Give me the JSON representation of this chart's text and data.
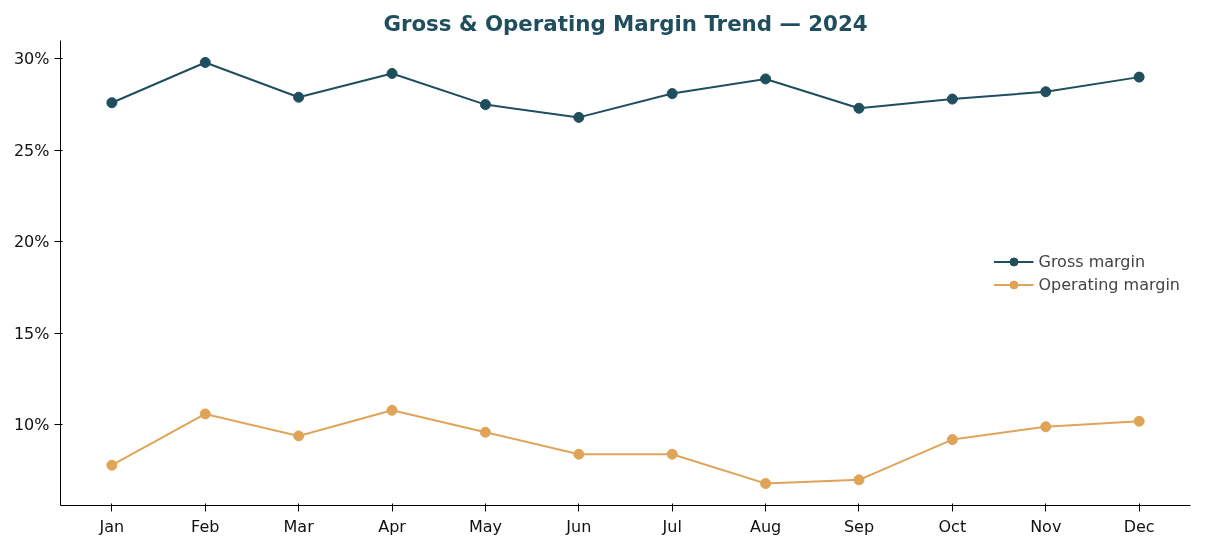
{
  "chart_data": {
    "type": "line",
    "title": "Gross & Operating Margin Trend — 2024",
    "categories": [
      "Jan",
      "Feb",
      "Mar",
      "Apr",
      "May",
      "Jun",
      "Jul",
      "Aug",
      "Sep",
      "Oct",
      "Nov",
      "Dec"
    ],
    "series": [
      {
        "name": "Gross margin",
        "color": "#1f4e5f",
        "values": [
          27.6,
          29.8,
          27.9,
          29.2,
          27.5,
          26.8,
          28.1,
          28.9,
          27.3,
          27.8,
          28.2,
          29.0
        ]
      },
      {
        "name": "Operating margin",
        "color": "#e0a458",
        "values": [
          7.8,
          10.6,
          9.4,
          10.8,
          9.6,
          8.4,
          8.4,
          6.8,
          7.0,
          9.2,
          9.9,
          10.2
        ]
      }
    ],
    "ylim": [
      5.6,
      31.0
    ],
    "yticks": [
      {
        "value": 10,
        "label": "10%"
      },
      {
        "value": 15,
        "label": "15%"
      },
      {
        "value": 20,
        "label": "20%"
      },
      {
        "value": 25,
        "label": "25%"
      },
      {
        "value": 30,
        "label": "30%"
      }
    ],
    "grid": false,
    "legend": "right",
    "marker": "circle",
    "line_style": "solid"
  }
}
